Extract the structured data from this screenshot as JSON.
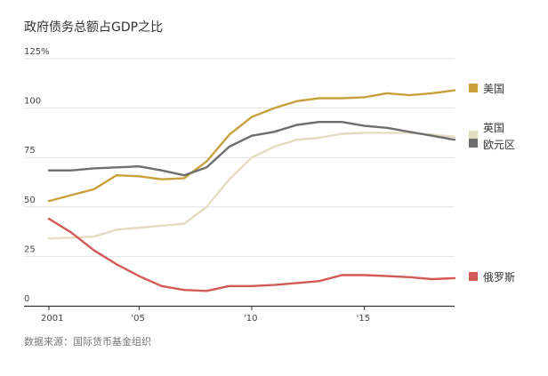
{
  "chart_data": {
    "type": "line",
    "title": "政府债务总额占GDP之比",
    "source": "数据来源：国际货币基金组织",
    "ylim": [
      0,
      125
    ],
    "yticks": [
      {
        "value": 0,
        "label": "0"
      },
      {
        "value": 25,
        "label": "25"
      },
      {
        "value": 50,
        "label": "50"
      },
      {
        "value": 75,
        "label": "75"
      },
      {
        "value": 100,
        "label": "100"
      },
      {
        "value": 125,
        "label": "125%"
      }
    ],
    "xlim": [
      2001,
      2019
    ],
    "xticks": [
      {
        "value": 2001,
        "label": "2001"
      },
      {
        "value": 2005,
        "label": "'05"
      },
      {
        "value": 2010,
        "label": "'10"
      },
      {
        "value": 2015,
        "label": "'15"
      }
    ],
    "grid": true,
    "legend": "right, at line ends",
    "x": [
      2001,
      2002,
      2003,
      2004,
      2005,
      2006,
      2007,
      2008,
      2009,
      2010,
      2011,
      2012,
      2013,
      2014,
      2015,
      2016,
      2017,
      2018,
      2019
    ],
    "series": [
      {
        "name": "美国",
        "color": "#c9a03c",
        "values": [
          53,
          56,
          59,
          66,
          65.5,
          64,
          64.5,
          73,
          86.5,
          95.5,
          100,
          103.5,
          105,
          105,
          105.5,
          107.5,
          106.5,
          107.5,
          109
        ]
      },
      {
        "name": "英国",
        "color": "#e3dcc0",
        "values": [
          34,
          34.5,
          35,
          38.5,
          39.5,
          40.5,
          41.5,
          50,
          64,
          75,
          80.5,
          84,
          85,
          87,
          87.5,
          87.5,
          87.5,
          86.5,
          85.5
        ]
      },
      {
        "name": "欧元区",
        "color": "#6e6e6e",
        "values": [
          68.5,
          68.5,
          69.5,
          70,
          70.5,
          68.5,
          66,
          70,
          80.5,
          86,
          88,
          91.5,
          93,
          93,
          91,
          90,
          88,
          86,
          84
        ]
      },
      {
        "name": "俄罗斯",
        "color": "#d25a57",
        "values": [
          44,
          37,
          28,
          21,
          15,
          10,
          8,
          7.5,
          10,
          10,
          10.5,
          11.5,
          12.5,
          15.5,
          15.5,
          15,
          14.5,
          13.5,
          14
        ]
      }
    ]
  }
}
